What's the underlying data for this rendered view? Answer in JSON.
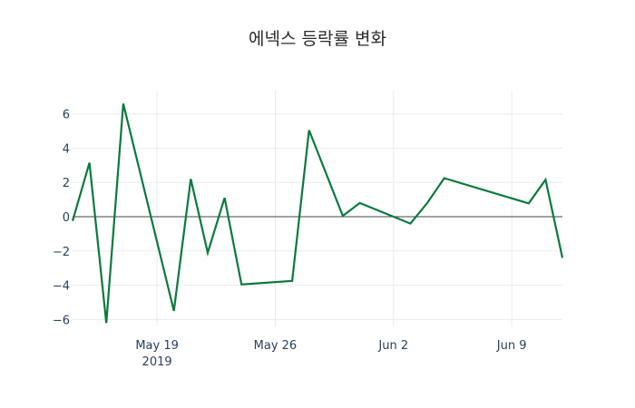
{
  "chart_data": {
    "type": "line",
    "title": "에넥스 등락률 변화",
    "xlabel": "",
    "ylabel": "",
    "x": [
      "2019-05-14",
      "2019-05-15",
      "2019-05-16",
      "2019-05-17",
      "2019-05-20",
      "2019-05-21",
      "2019-05-22",
      "2019-05-23",
      "2019-05-24",
      "2019-05-27",
      "2019-05-28",
      "2019-05-30",
      "2019-05-31",
      "2019-06-03",
      "2019-06-04",
      "2019-06-05",
      "2019-06-10",
      "2019-06-11",
      "2019-06-12"
    ],
    "series": [
      {
        "name": "등락률",
        "color": "#0a7a3c",
        "values": [
          -0.25,
          3.15,
          -6.2,
          6.6,
          -5.5,
          2.2,
          -2.1,
          1.1,
          -3.95,
          -3.75,
          5.05,
          0.05,
          0.8,
          -0.4,
          0.8,
          2.25,
          0.78,
          2.16,
          -2.4
        ]
      }
    ],
    "x_ticks": [
      "May 19\n2019",
      "May 26",
      "Jun 2",
      "Jun 9"
    ],
    "y_ticks": [
      6,
      4,
      2,
      0,
      -2,
      -4,
      -6
    ],
    "ylim": [
      -6.8,
      7.2
    ],
    "xlim": [
      "2019-05-14",
      "2019-06-12"
    ],
    "grid": true,
    "legend": null
  }
}
